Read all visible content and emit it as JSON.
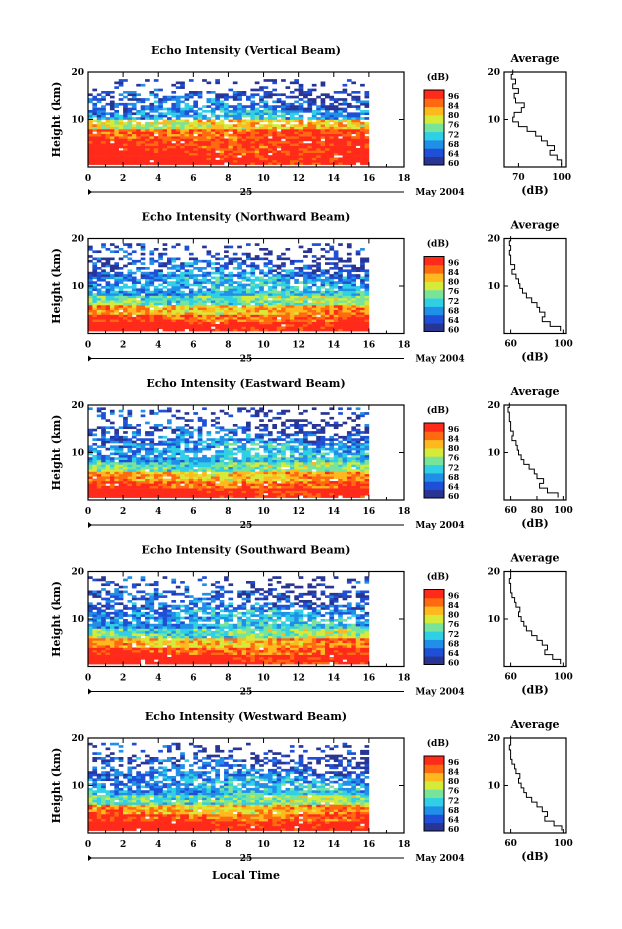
{
  "figure": {
    "xlabel": "Local Time",
    "date_left": "25",
    "date_right": "May 2004",
    "colorbar_title": "(dB)",
    "colorbar_ticks": [
      "96",
      "84",
      "80",
      "76",
      "72",
      "68",
      "64",
      "60"
    ],
    "avg_title": "Average",
    "avg_xlabel": "(dB)",
    "colors": {
      "cmap": [
        "#283593",
        "#1e4fd6",
        "#1f8fe8",
        "#2fd0e6",
        "#78e49a",
        "#d6ea3a",
        "#ffb81e",
        "#ff6a10",
        "#ff2a1a"
      ]
    }
  },
  "chart_data": [
    {
      "type": "heatmap",
      "title": "Echo Intensity (Vertical Beam)",
      "ylabel": "Height (km)",
      "x_ticks": [
        0,
        2,
        4,
        6,
        8,
        10,
        12,
        14,
        16,
        18
      ],
      "xlim": [
        0,
        18
      ],
      "y_ticks": [
        10,
        20
      ],
      "ylim": [
        0,
        20
      ],
      "data_end_hour": 16,
      "top_km": 18.5,
      "colorbar_range_db": [
        60,
        96
      ],
      "average_profile": {
        "x_ticks": [
          70,
          100
        ],
        "xlim": [
          60,
          103
        ],
        "ylim": [
          0,
          20
        ],
        "height_km": [
          1,
          2,
          3,
          4,
          5,
          6,
          7,
          8,
          9,
          10,
          11,
          12,
          13,
          14,
          15,
          16,
          17,
          18,
          19,
          20
        ],
        "db": [
          100,
          97,
          92,
          95,
          90,
          86,
          82,
          76,
          70,
          66,
          67,
          72,
          74,
          68,
          67,
          70,
          66,
          68,
          65,
          66
        ]
      }
    },
    {
      "type": "heatmap",
      "title": "Echo Intensity (Northward Beam)",
      "ylabel": "Height (km)",
      "x_ticks": [
        0,
        2,
        4,
        6,
        8,
        10,
        12,
        14,
        16,
        18
      ],
      "xlim": [
        0,
        18
      ],
      "y_ticks": [
        10,
        20
      ],
      "ylim": [
        0,
        20
      ],
      "data_end_hour": 16,
      "top_km": 19,
      "colorbar_range_db": [
        60,
        96
      ],
      "average_profile": {
        "x_ticks": [
          60,
          100
        ],
        "xlim": [
          55,
          102
        ],
        "ylim": [
          0,
          20
        ],
        "height_km": [
          1,
          2,
          3,
          4,
          5,
          6,
          7,
          8,
          9,
          10,
          11,
          12,
          13,
          14,
          15,
          16,
          17,
          18,
          19,
          20
        ],
        "db": [
          98,
          90,
          84,
          86,
          82,
          80,
          76,
          72,
          69,
          67,
          66,
          64,
          61,
          63,
          60,
          60,
          59,
          60,
          59,
          60
        ]
      }
    },
    {
      "type": "heatmap",
      "title": "Echo Intensity (Eastward Beam)",
      "ylabel": "Height (km)",
      "x_ticks": [
        0,
        2,
        4,
        6,
        8,
        10,
        12,
        14,
        16,
        18
      ],
      "xlim": [
        0,
        18
      ],
      "y_ticks": [
        10,
        20
      ],
      "ylim": [
        0,
        20
      ],
      "data_end_hour": 16,
      "top_km": 19.5,
      "colorbar_range_db": [
        60,
        96
      ],
      "average_profile": {
        "x_ticks": [
          60,
          80,
          100
        ],
        "xlim": [
          55,
          102
        ],
        "ylim": [
          0,
          20
        ],
        "height_km": [
          1,
          2,
          3,
          4,
          5,
          6,
          7,
          8,
          9,
          10,
          11,
          12,
          13,
          14,
          15,
          16,
          17,
          18,
          19,
          20
        ],
        "db": [
          96,
          88,
          82,
          85,
          80,
          78,
          74,
          70,
          68,
          66,
          65,
          64,
          61,
          62,
          60,
          60,
          59,
          59,
          58,
          59
        ]
      }
    },
    {
      "type": "heatmap",
      "title": "Echo Intensity (Southward Beam)",
      "ylabel": "Height (km)",
      "x_ticks": [
        0,
        2,
        4,
        6,
        8,
        10,
        12,
        14,
        16,
        18
      ],
      "xlim": [
        0,
        18
      ],
      "y_ticks": [
        10,
        20
      ],
      "ylim": [
        0,
        20
      ],
      "data_end_hour": 16,
      "top_km": 19,
      "colorbar_range_db": [
        60,
        96
      ],
      "average_profile": {
        "x_ticks": [
          60,
          100
        ],
        "xlim": [
          55,
          102
        ],
        "ylim": [
          0,
          20
        ],
        "height_km": [
          1,
          2,
          3,
          4,
          5,
          6,
          7,
          8,
          9,
          10,
          11,
          12,
          13,
          14,
          15,
          16,
          17,
          18,
          19,
          20
        ],
        "db": [
          98,
          92,
          86,
          88,
          84,
          80,
          76,
          72,
          70,
          68,
          66,
          67,
          64,
          63,
          61,
          60,
          60,
          59,
          60,
          60
        ]
      }
    },
    {
      "type": "heatmap",
      "title": "Echo Intensity (Westward Beam)",
      "ylabel": "Height (km)",
      "x_ticks": [
        0,
        2,
        4,
        6,
        8,
        10,
        12,
        14,
        16,
        18
      ],
      "xlim": [
        0,
        18
      ],
      "y_ticks": [
        10,
        20
      ],
      "ylim": [
        0,
        20
      ],
      "data_end_hour": 16,
      "top_km": 19,
      "colorbar_range_db": [
        60,
        96
      ],
      "average_profile": {
        "x_ticks": [
          60,
          100
        ],
        "xlim": [
          55,
          102
        ],
        "ylim": [
          0,
          20
        ],
        "height_km": [
          1,
          2,
          3,
          4,
          5,
          6,
          7,
          8,
          9,
          10,
          11,
          12,
          13,
          14,
          15,
          16,
          17,
          18,
          19,
          20
        ],
        "db": [
          99,
          93,
          86,
          88,
          84,
          80,
          76,
          72,
          70,
          68,
          66,
          67,
          64,
          63,
          61,
          60,
          60,
          59,
          60,
          60
        ]
      }
    }
  ]
}
